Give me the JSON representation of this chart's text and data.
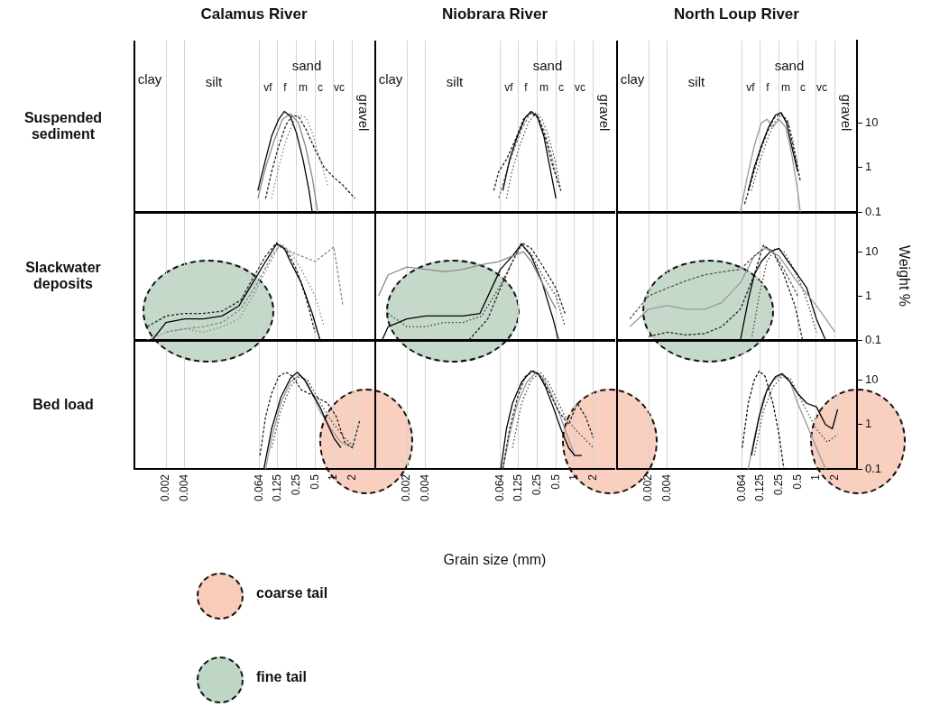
{
  "chart_data": [
    {
      "type": "line",
      "title": "Calamus River",
      "ylabel": "Suspended sediment",
      "log": "xy",
      "grid": "x",
      "marker": "none",
      "tick_labels": false,
      "xlim": [
        0.0006,
        4.5
      ],
      "ylim": [
        0.1,
        700
      ],
      "xticks": [
        0.002,
        0.004,
        0.064,
        0.125,
        0.25,
        0.5,
        1,
        2
      ],
      "yticks": [
        0.1,
        1,
        10
      ],
      "annotations": [
        "clay",
        "silt",
        "sand",
        "vf",
        "f",
        "m",
        "c",
        "vc",
        "gravel"
      ],
      "series": [
        {
          "color": "#000000",
          "line_style": "solid",
          "x": [
            0.06,
            0.08,
            0.1,
            0.13,
            0.16,
            0.2,
            0.25,
            0.32,
            0.4,
            0.45
          ],
          "values": [
            0.3,
            1.5,
            5,
            12,
            18,
            14,
            6,
            1.5,
            0.3,
            0.1
          ]
        },
        {
          "color": "#888888",
          "line_style": "solid",
          "x": [
            0.06,
            0.08,
            0.11,
            0.15,
            0.2,
            0.27,
            0.35,
            0.45,
            0.55
          ],
          "values": [
            0.2,
            1,
            4,
            12,
            16,
            10,
            3,
            0.6,
            0.1
          ]
        },
        {
          "color": "#222222",
          "line_style": "dashed",
          "x": [
            0.08,
            0.1,
            0.13,
            0.17,
            0.22,
            0.28,
            0.36,
            0.5,
            0.7,
            1,
            1.4,
            2.2
          ],
          "values": [
            0.2,
            0.8,
            3,
            9,
            15,
            13,
            7,
            2.5,
            1,
            0.6,
            0.4,
            0.2
          ]
        },
        {
          "color": "#888888",
          "line_style": "dotted",
          "x": [
            0.1,
            0.13,
            0.17,
            0.22,
            0.28,
            0.36,
            0.45,
            0.6,
            0.8
          ],
          "values": [
            0.2,
            1,
            4,
            10,
            15,
            13,
            6,
            1.5,
            0.4
          ]
        }
      ]
    },
    {
      "type": "line",
      "title": "Niobrara River",
      "log": "xy",
      "grid": "x",
      "marker": "none",
      "tick_labels": false,
      "xlim": [
        0.0006,
        4.5
      ],
      "ylim": [
        0.1,
        700
      ],
      "xticks": [
        0.002,
        0.004,
        0.064,
        0.125,
        0.25,
        0.5,
        1,
        2
      ],
      "yticks": [
        0.1,
        1,
        10
      ],
      "annotations": [
        "clay",
        "silt",
        "sand",
        "vf",
        "f",
        "m",
        "c",
        "vc",
        "gravel"
      ],
      "series": [
        {
          "color": "#000000",
          "line_style": "solid",
          "x": [
            0.07,
            0.09,
            0.12,
            0.16,
            0.2,
            0.25,
            0.32,
            0.4,
            0.5
          ],
          "values": [
            0.3,
            1.5,
            5,
            13,
            18,
            14,
            5,
            1,
            0.2
          ]
        },
        {
          "color": "#222222",
          "line_style": "dashed",
          "x": [
            0.05,
            0.06,
            0.08,
            0.11,
            0.15,
            0.2,
            0.27,
            0.35,
            0.45,
            0.6
          ],
          "values": [
            0.3,
            0.8,
            1.5,
            4,
            12,
            17,
            12,
            4,
            1,
            0.3
          ]
        },
        {
          "color": "#888888",
          "line_style": "dashed",
          "x": [
            0.06,
            0.08,
            0.1,
            0.14,
            0.19,
            0.25,
            0.32,
            0.42,
            0.55
          ],
          "values": [
            0.2,
            0.8,
            2,
            7,
            16,
            15,
            7,
            2,
            0.4
          ]
        },
        {
          "color": "#555555",
          "line_style": "dotted",
          "x": [
            0.08,
            0.1,
            0.13,
            0.18,
            0.24,
            0.3,
            0.38,
            0.5,
            0.6
          ],
          "values": [
            0.2,
            0.9,
            3,
            10,
            17,
            12,
            5,
            1.2,
            0.3
          ]
        }
      ]
    },
    {
      "type": "line",
      "title": "North Loup River",
      "log": "xy",
      "grid": "x",
      "marker": "none",
      "tick_labels": "y",
      "xlim": [
        0.0006,
        4.5
      ],
      "ylim": [
        0.1,
        700
      ],
      "xticks": [
        0.002,
        0.004,
        0.064,
        0.125,
        0.25,
        0.5,
        1,
        2
      ],
      "yticks": [
        0.1,
        1,
        10
      ],
      "annotations": [
        "clay",
        "silt",
        "sand",
        "vf",
        "f",
        "m",
        "c",
        "vc",
        "gravel"
      ],
      "series": [
        {
          "color": "#000000",
          "line_style": "solid",
          "x": [
            0.08,
            0.1,
            0.13,
            0.17,
            0.22,
            0.27,
            0.33,
            0.4,
            0.5
          ],
          "values": [
            0.3,
            1,
            3,
            8,
            15,
            17,
            10,
            3,
            0.8
          ]
        },
        {
          "color": "#999999",
          "line_style": "solid",
          "x": [
            0.06,
            0.075,
            0.1,
            0.13,
            0.16,
            0.2,
            0.25,
            0.32,
            0.4,
            0.5,
            0.55
          ],
          "values": [
            0.1,
            0.5,
            3,
            10,
            12,
            8,
            12,
            8,
            2,
            0.3,
            0.1
          ]
        },
        {
          "color": "#222222",
          "line_style": "dashed",
          "x": [
            0.07,
            0.09,
            0.12,
            0.16,
            0.21,
            0.27,
            0.35,
            0.45,
            0.55
          ],
          "values": [
            0.15,
            0.5,
            2,
            6,
            13,
            16,
            10,
            2,
            0.5
          ]
        },
        {
          "color": "#555555",
          "line_style": "dotted",
          "x": [
            0.09,
            0.12,
            0.16,
            0.21,
            0.27,
            0.34,
            0.42,
            0.5
          ],
          "values": [
            0.3,
            1.2,
            4,
            10,
            15,
            12,
            4,
            1
          ]
        }
      ]
    },
    {
      "type": "line",
      "ylabel": "Slackwater deposits",
      "log": "xy",
      "grid": "x",
      "marker": "none",
      "tick_labels": false,
      "xlim": [
        0.0006,
        4.5
      ],
      "ylim": [
        0.1,
        80
      ],
      "xticks": [
        0.002,
        0.004,
        0.064,
        0.125,
        0.25,
        0.5,
        1,
        2
      ],
      "yticks": [
        0.1,
        1,
        10
      ],
      "series": [
        {
          "color": "#000000",
          "line_style": "solid",
          "x": [
            0.0012,
            0.002,
            0.004,
            0.008,
            0.016,
            0.03,
            0.05,
            0.08,
            0.12,
            0.16,
            0.2,
            0.3,
            0.45,
            0.6
          ],
          "values": [
            0.1,
            0.25,
            0.3,
            0.3,
            0.35,
            0.6,
            2,
            6,
            15,
            12,
            6,
            2,
            0.4,
            0.1
          ]
        },
        {
          "color": "#222222",
          "line_style": "dashed",
          "x": [
            0.001,
            0.002,
            0.004,
            0.008,
            0.016,
            0.032,
            0.05,
            0.08,
            0.12,
            0.18,
            0.25,
            0.35,
            0.5
          ],
          "values": [
            0.2,
            0.35,
            0.4,
            0.4,
            0.45,
            0.8,
            2.5,
            8,
            16,
            10,
            4,
            1,
            0.15
          ]
        },
        {
          "color": "#888888",
          "line_style": "dashed",
          "x": [
            0.002,
            0.004,
            0.008,
            0.016,
            0.032,
            0.06,
            0.1,
            0.14,
            0.2,
            0.3,
            0.5,
            0.8,
            1,
            1.4
          ],
          "values": [
            0.15,
            0.18,
            0.2,
            0.25,
            0.5,
            2,
            8,
            15,
            10,
            8,
            6,
            10,
            13,
            0.6
          ]
        },
        {
          "color": "#888888",
          "line_style": "dotted",
          "x": [
            0.001,
            0.002,
            0.004,
            0.008,
            0.016,
            0.03,
            0.05,
            0.09,
            0.13,
            0.2,
            0.3,
            0.5,
            0.7
          ],
          "values": [
            0.1,
            0.15,
            0.18,
            0.15,
            0.2,
            0.3,
            1,
            5,
            13,
            10,
            4,
            1,
            0.2
          ]
        }
      ]
    },
    {
      "type": "line",
      "log": "xy",
      "grid": "x",
      "marker": "none",
      "tick_labels": false,
      "xlim": [
        0.0006,
        4.5
      ],
      "ylim": [
        0.1,
        80
      ],
      "xticks": [
        0.002,
        0.004,
        0.064,
        0.125,
        0.25,
        0.5,
        1,
        2
      ],
      "yticks": [
        0.1,
        1,
        10
      ],
      "series": [
        {
          "color": "#888888",
          "line_style": "solid",
          "x": [
            0.0007,
            0.001,
            0.002,
            0.004,
            0.008,
            0.016,
            0.03,
            0.06,
            0.1,
            0.15,
            0.2,
            0.3,
            0.5
          ],
          "values": [
            1,
            3,
            4.5,
            4,
            3.5,
            4,
            5,
            6,
            8,
            10,
            6,
            2,
            0.5
          ]
        },
        {
          "color": "#000000",
          "line_style": "solid",
          "x": [
            0.0008,
            0.001,
            0.002,
            0.004,
            0.008,
            0.016,
            0.03,
            0.064,
            0.1,
            0.14,
            0.2,
            0.3,
            0.45,
            0.55
          ],
          "values": [
            0.1,
            0.2,
            0.3,
            0.35,
            0.35,
            0.35,
            0.4,
            4,
            8,
            15,
            8,
            2,
            0.3,
            0.1
          ]
        },
        {
          "color": "#333333",
          "line_style": "dotted",
          "x": [
            0.001,
            0.002,
            0.004,
            0.008,
            0.016,
            0.032,
            0.06,
            0.1,
            0.14,
            0.2,
            0.3,
            0.5,
            0.7
          ],
          "values": [
            0.4,
            0.2,
            0.2,
            0.25,
            0.25,
            0.35,
            1.5,
            6,
            14,
            9,
            3,
            1,
            0.2
          ]
        },
        {
          "color": "#222222",
          "line_style": "dashed",
          "x": [
            0.02,
            0.04,
            0.064,
            0.1,
            0.14,
            0.2,
            0.3,
            0.5,
            0.7
          ],
          "values": [
            0.1,
            0.3,
            1.5,
            6,
            16,
            12,
            5,
            1.5,
            0.4
          ]
        }
      ]
    },
    {
      "type": "line",
      "ylabel": "Weight %",
      "log": "xy",
      "grid": "x",
      "marker": "none",
      "tick_labels": "y",
      "xlim": [
        0.0006,
        4.5
      ],
      "ylim": [
        0.1,
        80
      ],
      "xticks": [
        0.002,
        0.004,
        0.064,
        0.125,
        0.25,
        0.5,
        1,
        2
      ],
      "yticks": [
        0.1,
        1,
        10
      ],
      "series": [
        {
          "color": "#555555",
          "line_style": "dashed",
          "x": [
            0.001,
            0.002,
            0.004,
            0.008,
            0.016,
            0.03,
            0.06,
            0.1,
            0.15,
            0.2,
            0.3,
            0.5
          ],
          "values": [
            0.3,
            1,
            1.5,
            2.2,
            3,
            3.5,
            4,
            8,
            13,
            10,
            4,
            1
          ]
        },
        {
          "color": "#999999",
          "line_style": "solid",
          "x": [
            0.001,
            0.002,
            0.004,
            0.008,
            0.016,
            0.03,
            0.06,
            0.1,
            0.15,
            0.25,
            0.5,
            1,
            2
          ],
          "values": [
            0.2,
            0.5,
            0.6,
            0.5,
            0.5,
            0.7,
            2,
            8,
            12,
            8,
            2,
            0.6,
            0.15
          ]
        },
        {
          "color": "#000000",
          "line_style": "solid",
          "x": [
            0.06,
            0.08,
            0.1,
            0.13,
            0.18,
            0.25,
            0.35,
            0.5,
            0.7,
            1,
            1.4
          ],
          "values": [
            0.1,
            0.8,
            3,
            6,
            10,
            12,
            6,
            3,
            1.5,
            0.3,
            0.1
          ]
        },
        {
          "color": "#222222",
          "line_style": "dashed",
          "x": [
            0.002,
            0.004,
            0.008,
            0.016,
            0.03,
            0.06,
            0.1,
            0.14,
            0.2,
            0.3,
            0.45,
            0.6
          ],
          "values": [
            0.12,
            0.15,
            0.13,
            0.14,
            0.2,
            0.5,
            3,
            14,
            10,
            3,
            0.6,
            0.1
          ]
        },
        {
          "color": "#444444",
          "line_style": "dotted",
          "x": [
            0.09,
            0.12,
            0.16,
            0.22,
            0.3,
            0.4,
            0.55,
            0.75,
            1
          ],
          "values": [
            0.1,
            1,
            6,
            12,
            10,
            5,
            2,
            0.6,
            0.15
          ]
        }
      ]
    },
    {
      "type": "line",
      "ylabel": "Bed load",
      "log": "xy",
      "grid": "x",
      "marker": "none",
      "tick_labels": "x",
      "xlim": [
        0.0006,
        4.5
      ],
      "ylim": [
        0.1,
        80
      ],
      "xticks": [
        0.002,
        0.004,
        0.064,
        0.125,
        0.25,
        0.5,
        1,
        2
      ],
      "yticks": [
        0.1,
        1,
        10
      ],
      "series": [
        {
          "color": "#000000",
          "line_style": "solid",
          "x": [
            0.075,
            0.1,
            0.14,
            0.2,
            0.26,
            0.34,
            0.45,
            0.6,
            0.8,
            1,
            1.3
          ],
          "values": [
            0.1,
            0.8,
            4,
            11,
            15,
            10,
            5,
            2.5,
            1,
            0.5,
            0.3
          ]
        },
        {
          "color": "#222222",
          "line_style": "dashed",
          "x": [
            0.065,
            0.08,
            0.1,
            0.13,
            0.17,
            0.22,
            0.3,
            0.4,
            0.55,
            0.8,
            1.1,
            1.5,
            2,
            2.6
          ],
          "values": [
            0.2,
            1.5,
            5,
            12,
            15,
            12,
            6,
            5,
            4,
            3,
            1.5,
            0.4,
            0.3,
            1.2
          ]
        },
        {
          "color": "#999999",
          "line_style": "solid",
          "x": [
            0.08,
            0.1,
            0.14,
            0.2,
            0.28,
            0.36,
            0.45,
            0.6,
            0.9,
            1.3,
            2
          ],
          "values": [
            0.1,
            0.5,
            3,
            9,
            13,
            10,
            5,
            2,
            0.8,
            0.4,
            0.3
          ]
        },
        {
          "color": "#444444",
          "line_style": "dotted",
          "x": [
            0.1,
            0.14,
            0.2,
            0.28,
            0.38,
            0.5,
            0.7,
            1,
            1.5,
            2.2
          ],
          "values": [
            0.3,
            2,
            7,
            12,
            10,
            5,
            2.2,
            1,
            0.5,
            0.3
          ]
        }
      ]
    },
    {
      "type": "line",
      "xlabel": "Grain size (mm)",
      "log": "xy",
      "grid": "x",
      "marker": "none",
      "tick_labels": "x",
      "xlim": [
        0.0006,
        4.5
      ],
      "ylim": [
        0.1,
        80
      ],
      "xticks": [
        0.002,
        0.004,
        0.064,
        0.125,
        0.25,
        0.5,
        1,
        2
      ],
      "yticks": [
        0.1,
        1,
        10
      ],
      "annotations": [
        "coarse tail",
        "fine tail"
      ],
      "series": [
        {
          "color": "#000000",
          "line_style": "solid",
          "x": [
            0.065,
            0.08,
            0.1,
            0.14,
            0.2,
            0.26,
            0.34,
            0.45,
            0.6,
            0.8,
            1,
            1.3
          ],
          "values": [
            0.1,
            0.8,
            3,
            9,
            16,
            14,
            7,
            2.5,
            0.8,
            0.3,
            0.2,
            0.2
          ]
        },
        {
          "color": "#222222",
          "line_style": "dashed",
          "x": [
            0.07,
            0.09,
            0.12,
            0.16,
            0.22,
            0.3,
            0.4,
            0.55,
            0.8,
            1.1,
            1.5,
            2
          ],
          "values": [
            0.1,
            0.8,
            4,
            12,
            16,
            11,
            5,
            2,
            1,
            3,
            1.5,
            0.5
          ]
        },
        {
          "color": "#999999",
          "line_style": "solid",
          "x": [
            0.07,
            0.09,
            0.12,
            0.17,
            0.24,
            0.32,
            0.42,
            0.55,
            0.75,
            1
          ],
          "values": [
            0.1,
            0.6,
            3,
            9,
            15,
            11,
            5,
            2,
            0.6,
            0.2
          ]
        },
        {
          "color": "#444444",
          "line_style": "dotted",
          "x": [
            0.1,
            0.14,
            0.2,
            0.28,
            0.38,
            0.5,
            0.7,
            1,
            1.4,
            2
          ],
          "values": [
            0.3,
            3,
            10,
            15,
            9,
            4,
            1.5,
            0.8,
            0.5,
            0.3
          ]
        }
      ]
    },
    {
      "type": "line",
      "log": "xy",
      "grid": "x",
      "marker": "none",
      "xlim": [
        0.0006,
        4.5
      ],
      "ylim": [
        0.1,
        80
      ],
      "xticks": [
        0.002,
        0.004,
        0.064,
        0.125,
        0.25,
        0.5,
        1,
        2
      ],
      "yticks": [
        0.1,
        1,
        10
      ],
      "series": [
        {
          "color": "#111111",
          "line_style": "dashed",
          "x": [
            0.064,
            0.08,
            0.1,
            0.12,
            0.15,
            0.2,
            0.25,
            0.3
          ],
          "values": [
            0.3,
            3,
            10,
            16,
            12,
            3,
            0.6,
            0.1
          ]
        },
        {
          "color": "#000000",
          "line_style": "solid",
          "x": [
            0.09,
            0.12,
            0.16,
            0.22,
            0.28,
            0.36,
            0.5,
            0.7,
            1,
            1.4,
            1.8,
            2.2
          ],
          "values": [
            0.2,
            1.5,
            6,
            12,
            14,
            10,
            5,
            3,
            2.5,
            1,
            0.8,
            2.2
          ]
        },
        {
          "color": "#999999",
          "line_style": "solid",
          "x": [
            0.08,
            0.1,
            0.14,
            0.2,
            0.28,
            0.38,
            0.5,
            0.7,
            1,
            1.4
          ],
          "values": [
            0.1,
            0.5,
            4,
            10,
            13,
            9,
            3,
            1,
            0.3,
            0.1
          ]
        },
        {
          "color": "#444444",
          "line_style": "dotted",
          "x": [
            0.1,
            0.14,
            0.2,
            0.28,
            0.38,
            0.5,
            0.7,
            1,
            1.5,
            2.2
          ],
          "values": [
            0.2,
            2,
            7,
            12,
            11,
            5,
            2,
            0.8,
            0.4,
            0.6
          ]
        }
      ]
    }
  ]
}
